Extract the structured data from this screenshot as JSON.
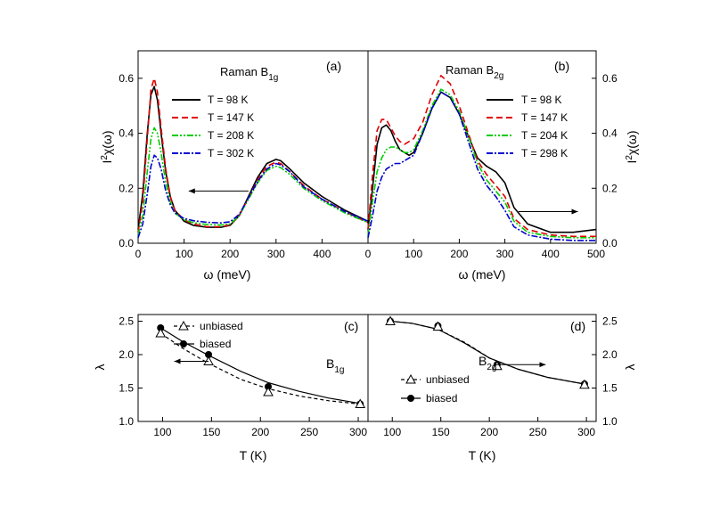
{
  "colors": {
    "c98": "#000000",
    "c147": "#e00000",
    "c208": "#00cc00",
    "c302": "#0000cc",
    "axis": "#000000"
  },
  "chart_data": [
    {
      "id": "a",
      "type": "line",
      "panel_label": "(a)",
      "title_main": "Raman B",
      "title_sub": "1g",
      "xlabel": "ω (meV)",
      "ylabel_main": "I",
      "ylabel_sup": "2",
      "ylabel_rest": "χ(ω)",
      "xlim": [
        0,
        500
      ],
      "ylim": [
        0,
        0.7
      ],
      "xticks": [
        "0",
        "100",
        "200",
        "300",
        "400"
      ],
      "yticks": [
        "0.0",
        "0.2",
        "0.4",
        "0.6"
      ],
      "series": [
        {
          "name": "T = 98 K",
          "style": "solid",
          "color": "#000000",
          "x": [
            0,
            10,
            20,
            28,
            35,
            42,
            50,
            60,
            70,
            80,
            100,
            120,
            150,
            180,
            200,
            220,
            240,
            260,
            280,
            300,
            310,
            330,
            360,
            400,
            450,
            500
          ],
          "y": [
            0.05,
            0.18,
            0.4,
            0.54,
            0.57,
            0.52,
            0.4,
            0.26,
            0.17,
            0.12,
            0.08,
            0.065,
            0.058,
            0.058,
            0.065,
            0.1,
            0.17,
            0.24,
            0.29,
            0.305,
            0.3,
            0.27,
            0.22,
            0.17,
            0.12,
            0.08
          ]
        },
        {
          "name": "T = 147 K",
          "style": "dash",
          "color": "#e00000",
          "x": [
            0,
            10,
            20,
            28,
            35,
            42,
            50,
            60,
            70,
            80,
            100,
            120,
            150,
            180,
            200,
            220,
            240,
            260,
            280,
            300,
            310,
            330,
            360,
            400,
            450,
            500
          ],
          "y": [
            0.04,
            0.15,
            0.38,
            0.56,
            0.6,
            0.55,
            0.42,
            0.27,
            0.17,
            0.12,
            0.085,
            0.07,
            0.06,
            0.06,
            0.067,
            0.1,
            0.165,
            0.23,
            0.28,
            0.295,
            0.29,
            0.26,
            0.21,
            0.16,
            0.115,
            0.075
          ]
        },
        {
          "name": "T = 208 K",
          "style": "dashdotdot",
          "color": "#00cc00",
          "x": [
            0,
            10,
            20,
            28,
            35,
            42,
            50,
            60,
            70,
            80,
            100,
            120,
            150,
            180,
            200,
            220,
            240,
            260,
            280,
            300,
            310,
            330,
            360,
            400,
            450,
            500
          ],
          "y": [
            0.03,
            0.1,
            0.26,
            0.38,
            0.42,
            0.4,
            0.33,
            0.22,
            0.15,
            0.11,
            0.085,
            0.075,
            0.068,
            0.066,
            0.07,
            0.1,
            0.16,
            0.22,
            0.265,
            0.28,
            0.275,
            0.25,
            0.2,
            0.155,
            0.11,
            0.075
          ]
        },
        {
          "name": "T = 302 K",
          "style": "dashdot",
          "color": "#0000cc",
          "x": [
            0,
            10,
            20,
            28,
            35,
            42,
            50,
            60,
            70,
            80,
            100,
            120,
            150,
            180,
            200,
            220,
            240,
            260,
            280,
            300,
            310,
            330,
            360,
            400,
            450,
            500
          ],
          "y": [
            0.02,
            0.07,
            0.18,
            0.28,
            0.32,
            0.31,
            0.27,
            0.19,
            0.14,
            0.11,
            0.09,
            0.082,
            0.076,
            0.074,
            0.078,
            0.105,
            0.165,
            0.225,
            0.27,
            0.29,
            0.285,
            0.26,
            0.205,
            0.16,
            0.115,
            0.08
          ]
        }
      ],
      "arrow": {
        "from": [
          240,
          0.19
        ],
        "to": [
          110,
          0.19
        ]
      }
    },
    {
      "id": "b",
      "type": "line",
      "panel_label": "(b)",
      "title_main": "Raman B",
      "title_sub": "2g",
      "xlabel": "ω (meV)",
      "ylabel_main": "I",
      "ylabel_sup": "2",
      "ylabel_rest": "χ(ω)",
      "xlim": [
        0,
        500
      ],
      "ylim": [
        0,
        0.7
      ],
      "xticks": [
        "0",
        "100",
        "200",
        "300",
        "400",
        "500"
      ],
      "yticks": [
        "0.0",
        "0.2",
        "0.4",
        "0.6"
      ],
      "series": [
        {
          "name": "T = 98 K",
          "style": "solid",
          "color": "#000000",
          "x": [
            0,
            10,
            20,
            30,
            40,
            50,
            60,
            70,
            80,
            90,
            100,
            120,
            140,
            160,
            180,
            200,
            220,
            240,
            260,
            280,
            300,
            320,
            350,
            400,
            450,
            500
          ],
          "y": [
            0.05,
            0.2,
            0.36,
            0.42,
            0.43,
            0.41,
            0.37,
            0.34,
            0.33,
            0.32,
            0.33,
            0.4,
            0.49,
            0.55,
            0.53,
            0.47,
            0.39,
            0.31,
            0.28,
            0.26,
            0.22,
            0.13,
            0.07,
            0.04,
            0.04,
            0.05
          ]
        },
        {
          "name": "T = 147 K",
          "style": "dash",
          "color": "#e00000",
          "x": [
            0,
            10,
            20,
            30,
            40,
            50,
            60,
            70,
            80,
            90,
            100,
            120,
            140,
            160,
            180,
            200,
            220,
            240,
            260,
            280,
            300,
            320,
            350,
            400,
            450,
            500
          ],
          "y": [
            0.05,
            0.25,
            0.41,
            0.45,
            0.45,
            0.42,
            0.39,
            0.37,
            0.36,
            0.37,
            0.38,
            0.44,
            0.54,
            0.61,
            0.58,
            0.5,
            0.4,
            0.3,
            0.25,
            0.21,
            0.17,
            0.09,
            0.05,
            0.03,
            0.025,
            0.025
          ]
        },
        {
          "name": "T = 204 K",
          "style": "dashdotdot",
          "color": "#00cc00",
          "x": [
            0,
            10,
            20,
            30,
            40,
            50,
            60,
            70,
            80,
            90,
            100,
            120,
            140,
            160,
            180,
            200,
            220,
            240,
            260,
            280,
            300,
            320,
            350,
            400,
            450,
            500
          ],
          "y": [
            0.03,
            0.15,
            0.26,
            0.31,
            0.34,
            0.35,
            0.35,
            0.34,
            0.33,
            0.33,
            0.34,
            0.41,
            0.5,
            0.56,
            0.54,
            0.48,
            0.39,
            0.29,
            0.23,
            0.19,
            0.15,
            0.08,
            0.04,
            0.025,
            0.02,
            0.02
          ]
        },
        {
          "name": "T = 298 K",
          "style": "dashdot",
          "color": "#0000cc",
          "x": [
            0,
            10,
            20,
            30,
            40,
            50,
            60,
            70,
            80,
            90,
            100,
            120,
            140,
            160,
            180,
            200,
            220,
            240,
            260,
            280,
            300,
            320,
            350,
            400,
            450,
            500
          ],
          "y": [
            0.02,
            0.1,
            0.19,
            0.24,
            0.27,
            0.28,
            0.29,
            0.29,
            0.3,
            0.31,
            0.32,
            0.4,
            0.49,
            0.55,
            0.53,
            0.47,
            0.37,
            0.27,
            0.21,
            0.17,
            0.12,
            0.06,
            0.03,
            0.015,
            0.01,
            0.01
          ]
        }
      ],
      "arrow": {
        "from": [
          330,
          0.115
        ],
        "to": [
          460,
          0.115
        ]
      }
    },
    {
      "id": "c",
      "type": "line",
      "panel_label": "(c)",
      "title_main": "B",
      "title_sub": "1g",
      "xlabel": "T (K)",
      "ylabel": "λ",
      "xlim": [
        75,
        310
      ],
      "ylim": [
        1.0,
        2.6
      ],
      "xticks": [
        "100",
        "150",
        "200",
        "250",
        "300"
      ],
      "yticks": [
        "1.0",
        "1.5",
        "2.0",
        "2.5"
      ],
      "legend": [
        "unbiased",
        "biased"
      ],
      "unbiased": {
        "x": [
          98,
          147,
          208,
          302
        ],
        "y": [
          2.32,
          1.9,
          1.44,
          1.26
        ],
        "fit_x": [
          98,
          120,
          147,
          180,
          208,
          240,
          270,
          302
        ],
        "fit_y": [
          2.32,
          2.1,
          1.87,
          1.63,
          1.49,
          1.38,
          1.31,
          1.26
        ]
      },
      "biased": {
        "x": [
          98,
          147,
          208,
          302
        ],
        "y": [
          2.4,
          2.0,
          1.52,
          1.26
        ],
        "fit_x": [
          98,
          120,
          147,
          180,
          208,
          240,
          270,
          302
        ],
        "fit_y": [
          2.4,
          2.2,
          1.99,
          1.75,
          1.58,
          1.45,
          1.35,
          1.27
        ]
      },
      "arrow": {
        "from": [
          147,
          1.9
        ],
        "to": [
          112,
          1.9
        ]
      }
    },
    {
      "id": "d",
      "type": "line",
      "panel_label": "(d)",
      "title_main": "B",
      "title_sub": "2g",
      "xlabel": "T (K)",
      "ylabel": "λ",
      "xlim": [
        75,
        310
      ],
      "ylim": [
        1.0,
        2.6
      ],
      "xticks": [
        "100",
        "150",
        "200",
        "250",
        "300"
      ],
      "yticks": [
        "1.0",
        "1.5",
        "2.0",
        "2.5"
      ],
      "legend": [
        "unbiased",
        "biased"
      ],
      "unbiased": {
        "x": [
          98,
          147,
          208,
          298
        ],
        "y": [
          2.5,
          2.42,
          1.83,
          1.55
        ],
        "fit_x": [
          98,
          120,
          147,
          175,
          200,
          230,
          260,
          298
        ],
        "fit_y": [
          2.5,
          2.47,
          2.38,
          2.18,
          1.95,
          1.78,
          1.66,
          1.56
        ]
      },
      "biased": {
        "x": [
          98,
          147,
          208,
          298
        ],
        "y": [
          2.5,
          2.43,
          1.85,
          1.56
        ],
        "fit_x": [
          98,
          120,
          147,
          175,
          200,
          230,
          260,
          298
        ],
        "fit_y": [
          2.5,
          2.47,
          2.38,
          2.17,
          1.95,
          1.78,
          1.66,
          1.56
        ]
      },
      "arrow": {
        "from": [
          205,
          1.85
        ],
        "to": [
          258,
          1.85
        ]
      }
    }
  ]
}
